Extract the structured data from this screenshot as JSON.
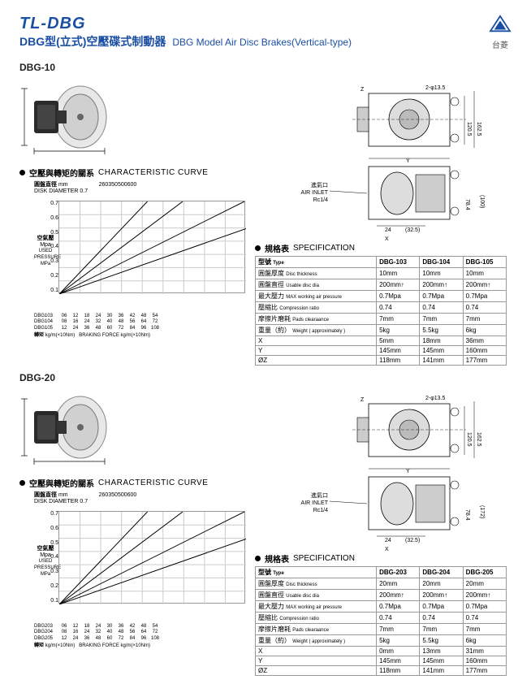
{
  "header": {
    "title": "TL-DBG",
    "subtitle_cn": "DBG型(立式)空壓碟式制動器",
    "subtitle_en": "DBG Model Air Disc Brakes(Vertical-type)",
    "brand": "台菱"
  },
  "sections": [
    {
      "label": "DBG-10",
      "curve_title_cn": "空壓與轉矩的關系",
      "curve_title_en": "CHARACTERISTIC CURVE",
      "chart": {
        "disk_label_cn": "圓盤直徑",
        "disk_label_unit": "mm",
        "disk_label_en": "DISK DIAMETER",
        "col_headers": [
          "260",
          "350",
          "500",
          "600"
        ],
        "y_label_cn": "空氣壓",
        "y_label_unit": "Mpa",
        "y_label_en": "USED PRESSURE",
        "y_label_en2": "MPa",
        "y_ticks": [
          "0.7",
          "0.6",
          "0.5",
          "0.4",
          "0.3",
          "0.2",
          "0.1"
        ],
        "x_rows": [
          {
            "label": "DBG103",
            "vals": [
              "06",
              "12",
              "18",
              "24",
              "30",
              "36",
              "42",
              "48",
              "54"
            ]
          },
          {
            "label": "DBG104",
            "vals": [
              "08",
              "16",
              "24",
              "32",
              "40",
              "48",
              "56",
              "64",
              "72"
            ]
          },
          {
            "label": "DBG105",
            "vals": [
              "12",
              "24",
              "36",
              "48",
              "60",
              "72",
              "84",
              "96",
              "108"
            ]
          }
        ],
        "x_axis_label_cn": "轉矩",
        "x_axis_label_unit": "kg/m(×10Nm)",
        "x_axis_label_en": "BRAKING FORCE kg/m(×10Nm)",
        "grid_color": "#cccccc",
        "line_color": "#000000",
        "n_lines": 4
      },
      "diagram": {
        "air_inlet_cn": "進氣口",
        "air_inlet_en": "AIR INLET",
        "air_inlet_spec": "Rc1/4",
        "dim_top": "2-φ13.5",
        "dim_r1": "120.5",
        "dim_r2": "162.5",
        "dim_x": "X",
        "dim_y": "Y",
        "dim_z": "Z",
        "dim_side": "(100)",
        "dim_b1": "24",
        "dim_b2": "(32.5)",
        "dim_b3": "78.4"
      },
      "spec_title_cn": "規格表",
      "spec_title_en": "SPECIFICATION",
      "spec": {
        "rows": [
          {
            "label_cn": "型號",
            "label_en": "Type",
            "c1": "DBG-103",
            "c2": "DBG-104",
            "c3": "DBG-105"
          },
          {
            "label_cn": "圓盤厚度",
            "label_en": "Disc thickness",
            "c1": "10mm",
            "c2": "10mm",
            "c3": "10mm"
          },
          {
            "label_cn": "圓盤直徑",
            "label_en": "Usable disc dia",
            "c1": "200mm↑",
            "c2": "200mm↑",
            "c3": "200mm↑"
          },
          {
            "label_cn": "最大壓力",
            "label_en": "MAX working air pressure",
            "c1": "0.7Mpa",
            "c2": "0.7Mpa",
            "c3": "0.7Mpa"
          },
          {
            "label_cn": "壓縮比",
            "label_en": "Compression ratio",
            "c1": "0.74",
            "c2": "0.74",
            "c3": "0.74"
          },
          {
            "label_cn": "摩擦片磨耗",
            "label_en": "Pads clearaance",
            "c1": "7mm",
            "c2": "7mm",
            "c3": "7mm"
          },
          {
            "label_cn": "重量（約）",
            "label_en": "Weight ( approximately )",
            "c1": "5kg",
            "c2": "5.5kg",
            "c3": "6kg"
          },
          {
            "label_cn": "X",
            "label_en": "",
            "c1": "5mm",
            "c2": "18mm",
            "c3": "36mm"
          },
          {
            "label_cn": "Y",
            "label_en": "",
            "c1": "145mm",
            "c2": "145mm",
            "c3": "160mm"
          },
          {
            "label_cn": "ØZ",
            "label_en": "",
            "c1": "118mm",
            "c2": "141mm",
            "c3": "177mm"
          }
        ]
      }
    },
    {
      "label": "DBG-20",
      "curve_title_cn": "空壓與轉矩的關系",
      "curve_title_en": "CHARACTERISTIC CURVE",
      "chart": {
        "disk_label_cn": "圓盤直徑",
        "disk_label_unit": "mm",
        "disk_label_en": "DISK DIAMETER",
        "col_headers": [
          "260",
          "350",
          "500",
          "600"
        ],
        "y_label_cn": "空氣壓",
        "y_label_unit": "Mpa",
        "y_label_en": "USED PRESSURE",
        "y_label_en2": "MPa",
        "y_ticks": [
          "0.7",
          "0.6",
          "0.5",
          "0.4",
          "0.3",
          "0.2",
          "0.1"
        ],
        "x_rows": [
          {
            "label": "DBG203",
            "vals": [
              "06",
              "12",
              "18",
              "24",
              "30",
              "36",
              "42",
              "48",
              "54"
            ]
          },
          {
            "label": "DBG204",
            "vals": [
              "08",
              "16",
              "24",
              "32",
              "40",
              "48",
              "56",
              "64",
              "72"
            ]
          },
          {
            "label": "DBG205",
            "vals": [
              "12",
              "24",
              "36",
              "48",
              "60",
              "72",
              "84",
              "96",
              "108"
            ]
          }
        ],
        "x_axis_label_cn": "轉矩",
        "x_axis_label_unit": "kg/m(×10Nm)",
        "x_axis_label_en": "BRAKING FORCE kg/m(×10Nm)",
        "grid_color": "#cccccc",
        "line_color": "#000000",
        "n_lines": 4
      },
      "diagram": {
        "air_inlet_cn": "進氣口",
        "air_inlet_en": "AIR INLET",
        "air_inlet_spec": "Rc1/4",
        "dim_top": "2-φ13.5",
        "dim_r1": "120.5",
        "dim_r2": "162.5",
        "dim_x": "X",
        "dim_y": "Y",
        "dim_z": "Z",
        "dim_side": "(172)",
        "dim_b1": "24",
        "dim_b2": "(32.5)",
        "dim_b3": "78.4"
      },
      "spec_title_cn": "規格表",
      "spec_title_en": "SPECIFICATION",
      "spec": {
        "rows": [
          {
            "label_cn": "型號",
            "label_en": "Type",
            "c1": "DBG-203",
            "c2": "DBG-204",
            "c3": "DBG-205"
          },
          {
            "label_cn": "圓盤厚度",
            "label_en": "Disc thickness",
            "c1": "20mm",
            "c2": "20mm",
            "c3": "20mm"
          },
          {
            "label_cn": "圓盤直徑",
            "label_en": "Usable disc dia",
            "c1": "200mm↑",
            "c2": "200mm↑",
            "c3": "200mm↑"
          },
          {
            "label_cn": "最大壓力",
            "label_en": "MAX working air pressure",
            "c1": "0.7Mpa",
            "c2": "0.7Mpa",
            "c3": "0.7Mpa"
          },
          {
            "label_cn": "壓縮比",
            "label_en": "Compression ratio",
            "c1": "0.74",
            "c2": "0.74",
            "c3": "0.74"
          },
          {
            "label_cn": "摩擦片磨耗",
            "label_en": "Pads clearaance",
            "c1": "7mm",
            "c2": "7mm",
            "c3": "7mm"
          },
          {
            "label_cn": "重量（約）",
            "label_en": "Weight ( approximately )",
            "c1": "5kg",
            "c2": "5.5kg",
            "c3": "6kg"
          },
          {
            "label_cn": "X",
            "label_en": "",
            "c1": "0mm",
            "c2": "13mm",
            "c3": "31mm"
          },
          {
            "label_cn": "Y",
            "label_en": "",
            "c1": "145mm",
            "c2": "145mm",
            "c3": "160mm"
          },
          {
            "label_cn": "ØZ",
            "label_en": "",
            "c1": "118mm",
            "c2": "141mm",
            "c3": "177mm"
          }
        ]
      }
    }
  ]
}
